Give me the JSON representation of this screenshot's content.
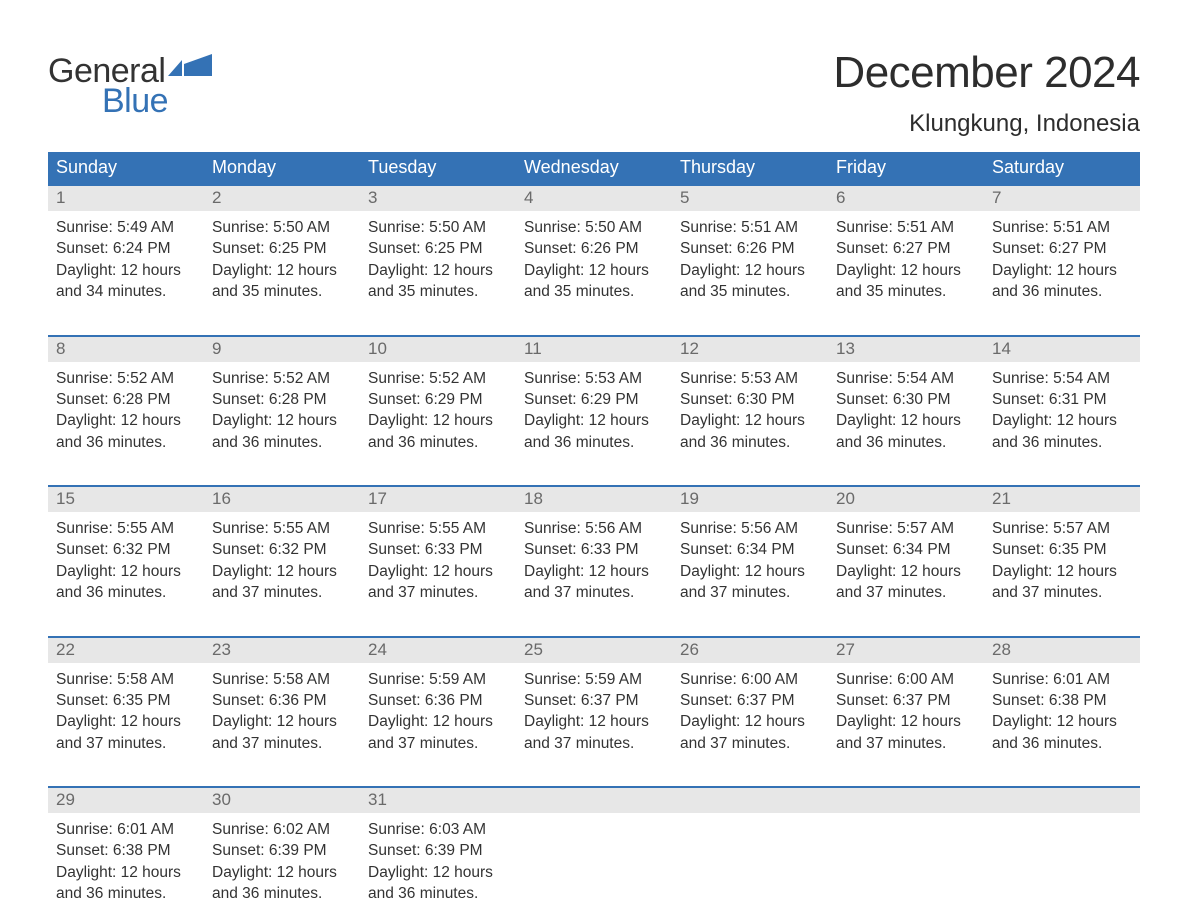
{
  "logo": {
    "line1": "General",
    "line2": "Blue",
    "brand_color": "#3472b5"
  },
  "title": "December 2024",
  "location": "Klungkung, Indonesia",
  "colors": {
    "header_bg": "#3472b5",
    "header_text": "#ffffff",
    "daynum_bg": "#e7e7e7",
    "daynum_text": "#6a6a6a",
    "body_text": "#333333",
    "week_border": "#3472b5",
    "page_bg": "#ffffff"
  },
  "fonts": {
    "title_size_pt": 33,
    "location_size_pt": 18,
    "dayname_size_pt": 14,
    "body_size_pt": 12
  },
  "day_names": [
    "Sunday",
    "Monday",
    "Tuesday",
    "Wednesday",
    "Thursday",
    "Friday",
    "Saturday"
  ],
  "weeks": [
    [
      {
        "n": "1",
        "sr": "Sunrise: 5:49 AM",
        "ss": "Sunset: 6:24 PM",
        "d1": "Daylight: 12 hours",
        "d2": "and 34 minutes."
      },
      {
        "n": "2",
        "sr": "Sunrise: 5:50 AM",
        "ss": "Sunset: 6:25 PM",
        "d1": "Daylight: 12 hours",
        "d2": "and 35 minutes."
      },
      {
        "n": "3",
        "sr": "Sunrise: 5:50 AM",
        "ss": "Sunset: 6:25 PM",
        "d1": "Daylight: 12 hours",
        "d2": "and 35 minutes."
      },
      {
        "n": "4",
        "sr": "Sunrise: 5:50 AM",
        "ss": "Sunset: 6:26 PM",
        "d1": "Daylight: 12 hours",
        "d2": "and 35 minutes."
      },
      {
        "n": "5",
        "sr": "Sunrise: 5:51 AM",
        "ss": "Sunset: 6:26 PM",
        "d1": "Daylight: 12 hours",
        "d2": "and 35 minutes."
      },
      {
        "n": "6",
        "sr": "Sunrise: 5:51 AM",
        "ss": "Sunset: 6:27 PM",
        "d1": "Daylight: 12 hours",
        "d2": "and 35 minutes."
      },
      {
        "n": "7",
        "sr": "Sunrise: 5:51 AM",
        "ss": "Sunset: 6:27 PM",
        "d1": "Daylight: 12 hours",
        "d2": "and 36 minutes."
      }
    ],
    [
      {
        "n": "8",
        "sr": "Sunrise: 5:52 AM",
        "ss": "Sunset: 6:28 PM",
        "d1": "Daylight: 12 hours",
        "d2": "and 36 minutes."
      },
      {
        "n": "9",
        "sr": "Sunrise: 5:52 AM",
        "ss": "Sunset: 6:28 PM",
        "d1": "Daylight: 12 hours",
        "d2": "and 36 minutes."
      },
      {
        "n": "10",
        "sr": "Sunrise: 5:52 AM",
        "ss": "Sunset: 6:29 PM",
        "d1": "Daylight: 12 hours",
        "d2": "and 36 minutes."
      },
      {
        "n": "11",
        "sr": "Sunrise: 5:53 AM",
        "ss": "Sunset: 6:29 PM",
        "d1": "Daylight: 12 hours",
        "d2": "and 36 minutes."
      },
      {
        "n": "12",
        "sr": "Sunrise: 5:53 AM",
        "ss": "Sunset: 6:30 PM",
        "d1": "Daylight: 12 hours",
        "d2": "and 36 minutes."
      },
      {
        "n": "13",
        "sr": "Sunrise: 5:54 AM",
        "ss": "Sunset: 6:30 PM",
        "d1": "Daylight: 12 hours",
        "d2": "and 36 minutes."
      },
      {
        "n": "14",
        "sr": "Sunrise: 5:54 AM",
        "ss": "Sunset: 6:31 PM",
        "d1": "Daylight: 12 hours",
        "d2": "and 36 minutes."
      }
    ],
    [
      {
        "n": "15",
        "sr": "Sunrise: 5:55 AM",
        "ss": "Sunset: 6:32 PM",
        "d1": "Daylight: 12 hours",
        "d2": "and 36 minutes."
      },
      {
        "n": "16",
        "sr": "Sunrise: 5:55 AM",
        "ss": "Sunset: 6:32 PM",
        "d1": "Daylight: 12 hours",
        "d2": "and 37 minutes."
      },
      {
        "n": "17",
        "sr": "Sunrise: 5:55 AM",
        "ss": "Sunset: 6:33 PM",
        "d1": "Daylight: 12 hours",
        "d2": "and 37 minutes."
      },
      {
        "n": "18",
        "sr": "Sunrise: 5:56 AM",
        "ss": "Sunset: 6:33 PM",
        "d1": "Daylight: 12 hours",
        "d2": "and 37 minutes."
      },
      {
        "n": "19",
        "sr": "Sunrise: 5:56 AM",
        "ss": "Sunset: 6:34 PM",
        "d1": "Daylight: 12 hours",
        "d2": "and 37 minutes."
      },
      {
        "n": "20",
        "sr": "Sunrise: 5:57 AM",
        "ss": "Sunset: 6:34 PM",
        "d1": "Daylight: 12 hours",
        "d2": "and 37 minutes."
      },
      {
        "n": "21",
        "sr": "Sunrise: 5:57 AM",
        "ss": "Sunset: 6:35 PM",
        "d1": "Daylight: 12 hours",
        "d2": "and 37 minutes."
      }
    ],
    [
      {
        "n": "22",
        "sr": "Sunrise: 5:58 AM",
        "ss": "Sunset: 6:35 PM",
        "d1": "Daylight: 12 hours",
        "d2": "and 37 minutes."
      },
      {
        "n": "23",
        "sr": "Sunrise: 5:58 AM",
        "ss": "Sunset: 6:36 PM",
        "d1": "Daylight: 12 hours",
        "d2": "and 37 minutes."
      },
      {
        "n": "24",
        "sr": "Sunrise: 5:59 AM",
        "ss": "Sunset: 6:36 PM",
        "d1": "Daylight: 12 hours",
        "d2": "and 37 minutes."
      },
      {
        "n": "25",
        "sr": "Sunrise: 5:59 AM",
        "ss": "Sunset: 6:37 PM",
        "d1": "Daylight: 12 hours",
        "d2": "and 37 minutes."
      },
      {
        "n": "26",
        "sr": "Sunrise: 6:00 AM",
        "ss": "Sunset: 6:37 PM",
        "d1": "Daylight: 12 hours",
        "d2": "and 37 minutes."
      },
      {
        "n": "27",
        "sr": "Sunrise: 6:00 AM",
        "ss": "Sunset: 6:37 PM",
        "d1": "Daylight: 12 hours",
        "d2": "and 37 minutes."
      },
      {
        "n": "28",
        "sr": "Sunrise: 6:01 AM",
        "ss": "Sunset: 6:38 PM",
        "d1": "Daylight: 12 hours",
        "d2": "and 36 minutes."
      }
    ],
    [
      {
        "n": "29",
        "sr": "Sunrise: 6:01 AM",
        "ss": "Sunset: 6:38 PM",
        "d1": "Daylight: 12 hours",
        "d2": "and 36 minutes."
      },
      {
        "n": "30",
        "sr": "Sunrise: 6:02 AM",
        "ss": "Sunset: 6:39 PM",
        "d1": "Daylight: 12 hours",
        "d2": "and 36 minutes."
      },
      {
        "n": "31",
        "sr": "Sunrise: 6:03 AM",
        "ss": "Sunset: 6:39 PM",
        "d1": "Daylight: 12 hours",
        "d2": "and 36 minutes."
      },
      null,
      null,
      null,
      null
    ]
  ]
}
